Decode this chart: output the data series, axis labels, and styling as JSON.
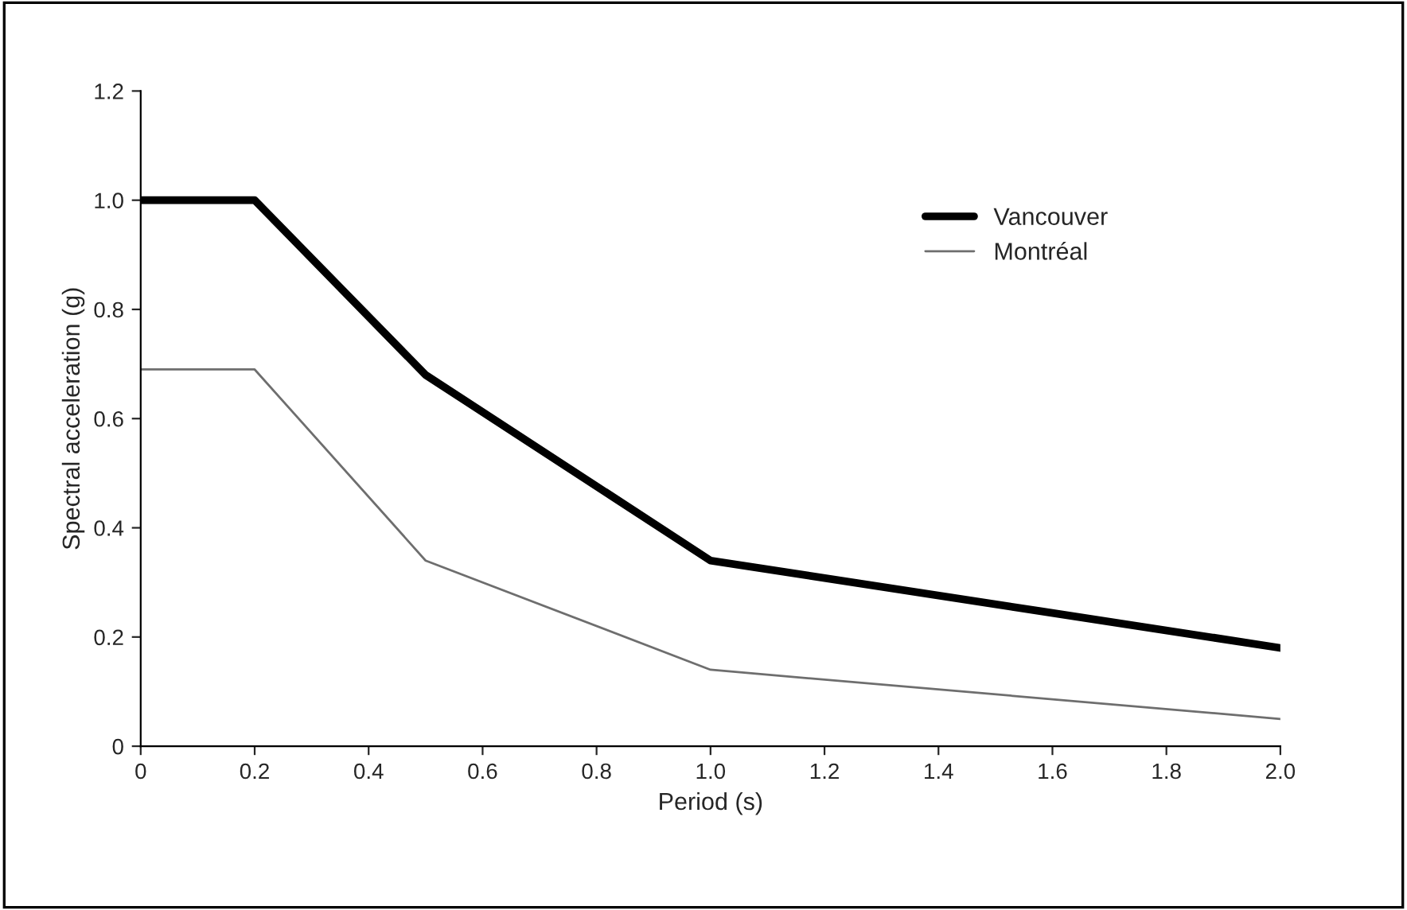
{
  "chart_data": {
    "type": "line",
    "xlabel": "Period (s)",
    "ylabel": "Spectral acceleration (g)",
    "x": [
      0,
      0.2,
      0.5,
      1.0,
      2.0
    ],
    "series": [
      {
        "name": "Vancouver",
        "color": "#000000",
        "values": [
          1.0,
          1.0,
          0.68,
          0.34,
          0.18
        ]
      },
      {
        "name": "Montréal",
        "color": "#6e6e6e",
        "values": [
          0.69,
          0.69,
          0.34,
          0.14,
          0.05
        ]
      }
    ],
    "xlim": [
      0,
      2.0
    ],
    "ylim": [
      0,
      1.2
    ],
    "xticks": [
      0,
      0.2,
      0.4,
      0.6,
      0.8,
      {
        "value": 1.0,
        "label": "1.0"
      },
      1.2,
      1.4,
      1.6,
      1.8,
      {
        "value": 2.0,
        "label": "2.0"
      }
    ],
    "yticks": [
      0,
      0.2,
      0.4,
      0.6,
      0.8,
      {
        "value": 1.0,
        "label": "1.0"
      },
      1.2
    ],
    "grid": false,
    "legend": "top right",
    "marker": "none",
    "line_style": "solid"
  }
}
